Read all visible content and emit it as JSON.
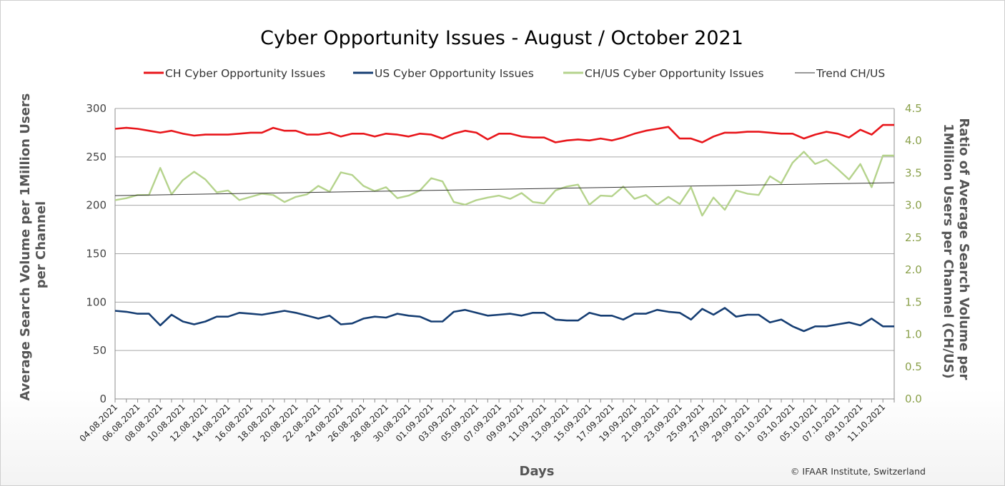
{
  "chart_data": {
    "type": "line",
    "title": "Cyber Opportunity Issues - August / October 2021",
    "xlabel": "Days",
    "ylabel_left": "Average Search Volume per 1Million Users per Channel",
    "ylabel_right": "Ratio of Average Search Volume per 1Million Users per Channel (CH/US)",
    "credit": "© IFAAR Institute, Switzerland",
    "left_axis": {
      "ylim": [
        0,
        300
      ],
      "ticks": [
        "0",
        "50",
        "100",
        "150",
        "200",
        "250",
        "300"
      ]
    },
    "right_axis": {
      "ylim": [
        0,
        4.5
      ],
      "ticks": [
        "0.0",
        "0.5",
        "1.0",
        "1.5",
        "2.0",
        "2.5",
        "3.0",
        "3.5",
        "4.0",
        "4.5"
      ]
    },
    "x_tick_labels": [
      "04.08.2021",
      "06.08.2021",
      "08.08.2021",
      "10.08.2021",
      "12.08.2021",
      "14.08.2021",
      "16.08.2021",
      "18.08.2021",
      "20.08.2021",
      "22.08.2021",
      "24.08.2021",
      "26.08.2021",
      "28.08.2021",
      "30.08.2021",
      "01.09.2021",
      "03.09.2021",
      "05.09.2021",
      "07.09.2021",
      "09.09.2021",
      "11.09.2021",
      "13.09.2021",
      "15.09.2021",
      "17.09.2021",
      "19.09.2021",
      "21.09.2021",
      "23.09.2021",
      "25.09.2021",
      "27.09.2021",
      "29.09.2021",
      "01.10.2021",
      "03.10.2021",
      "05.10.2021",
      "07.10.2021",
      "09.10.2021",
      "11.10.2021"
    ],
    "x_count": 70,
    "grid": true,
    "legend_position": "top",
    "series": [
      {
        "name": "CH Cyber Opportunity Issues",
        "axis": "left",
        "color": "#e8161b",
        "values": [
          279,
          280,
          279,
          277,
          275,
          277,
          274,
          272,
          273,
          273,
          273,
          274,
          275,
          275,
          280,
          277,
          277,
          273,
          273,
          275,
          271,
          274,
          274,
          271,
          274,
          273,
          271,
          274,
          273,
          269,
          274,
          277,
          275,
          268,
          274,
          274,
          271,
          270,
          270,
          265,
          267,
          268,
          267,
          269,
          267,
          270,
          274,
          277,
          279,
          281,
          269,
          269,
          265,
          271,
          275,
          275,
          276,
          276,
          275,
          274,
          274,
          269,
          273,
          276,
          274,
          270,
          278,
          273,
          283,
          283
        ]
      },
      {
        "name": "US Cyber Opportunity Issues",
        "axis": "left",
        "color": "#163e73",
        "values": [
          91,
          90,
          88,
          88,
          76,
          87,
          80,
          77,
          80,
          85,
          85,
          89,
          88,
          87,
          89,
          91,
          89,
          86,
          83,
          86,
          77,
          78,
          83,
          85,
          84,
          88,
          86,
          85,
          80,
          80,
          90,
          92,
          89,
          86,
          87,
          88,
          86,
          89,
          89,
          82,
          81,
          81,
          89,
          86,
          86,
          82,
          88,
          88,
          92,
          90,
          89,
          82,
          93,
          87,
          94,
          85,
          87,
          87,
          79,
          82,
          75,
          70,
          75,
          75,
          77,
          79,
          76,
          83,
          75,
          75
        ]
      },
      {
        "name": "CH/US Cyber Opportunity Issues",
        "axis": "right",
        "color": "#b5d38c",
        "values": [
          3.08,
          3.11,
          3.16,
          3.16,
          3.58,
          3.17,
          3.39,
          3.52,
          3.4,
          3.2,
          3.23,
          3.08,
          3.13,
          3.18,
          3.16,
          3.05,
          3.13,
          3.17,
          3.3,
          3.21,
          3.51,
          3.47,
          3.3,
          3.22,
          3.28,
          3.11,
          3.15,
          3.23,
          3.42,
          3.37,
          3.05,
          3.01,
          3.08,
          3.12,
          3.15,
          3.1,
          3.19,
          3.05,
          3.03,
          3.23,
          3.29,
          3.32,
          3.01,
          3.15,
          3.14,
          3.29,
          3.1,
          3.16,
          3.01,
          3.13,
          3.02,
          3.28,
          2.84,
          3.12,
          2.93,
          3.23,
          3.18,
          3.16,
          3.45,
          3.34,
          3.66,
          3.83,
          3.64,
          3.71,
          3.56,
          3.4,
          3.64,
          3.28,
          3.77,
          3.77
        ]
      },
      {
        "name": "Trend CH/US",
        "axis": "right",
        "color": "#333333",
        "type": "linear-trend",
        "start": 3.15,
        "end": 3.35
      }
    ]
  }
}
